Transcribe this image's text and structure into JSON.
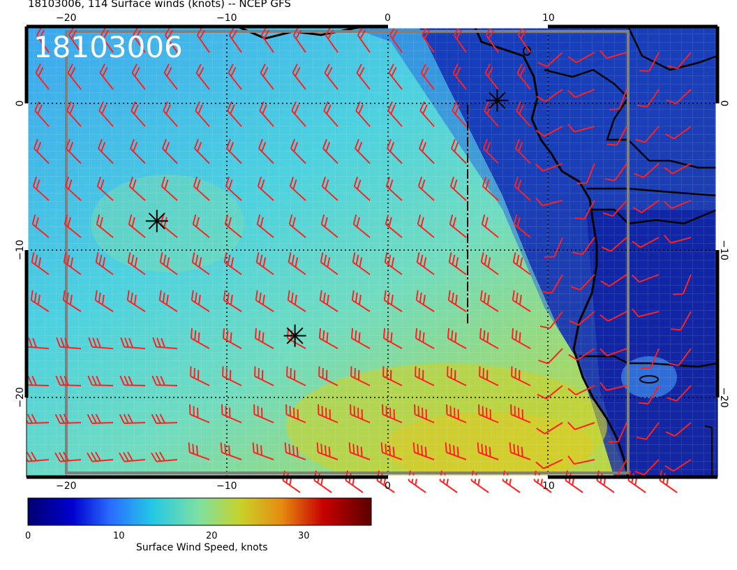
{
  "title": "18103006, 114 Surface winds (knots) -- NCEP GFS",
  "stamp": "18103006",
  "x_ticks": [
    "−20",
    "−10",
    "0",
    "10"
  ],
  "y_ticks": [
    "0",
    "−10",
    "−20"
  ],
  "colorbar": {
    "title": "Surface Wind Speed, knots",
    "ticks": [
      "0",
      "10",
      "20",
      "30"
    ],
    "range": [
      0,
      37
    ],
    "colors": [
      "#00006e",
      "#0000d0",
      "#2a6cff",
      "#22c8e6",
      "#7fe0a0",
      "#c8d22a",
      "#e68a10",
      "#c80000",
      "#5a0000"
    ]
  },
  "markers": [
    {
      "name": "asterisk-marker",
      "lon": -14.4,
      "lat": -8.0
    },
    {
      "name": "asterisk-marker",
      "lon": -5.8,
      "lat": -15.8
    },
    {
      "name": "asterisk-marker",
      "lon": 6.8,
      "lat": 0.2
    }
  ],
  "colors": {
    "barb": "#ff2020",
    "coast": "#000000",
    "frame": "#808080"
  }
}
